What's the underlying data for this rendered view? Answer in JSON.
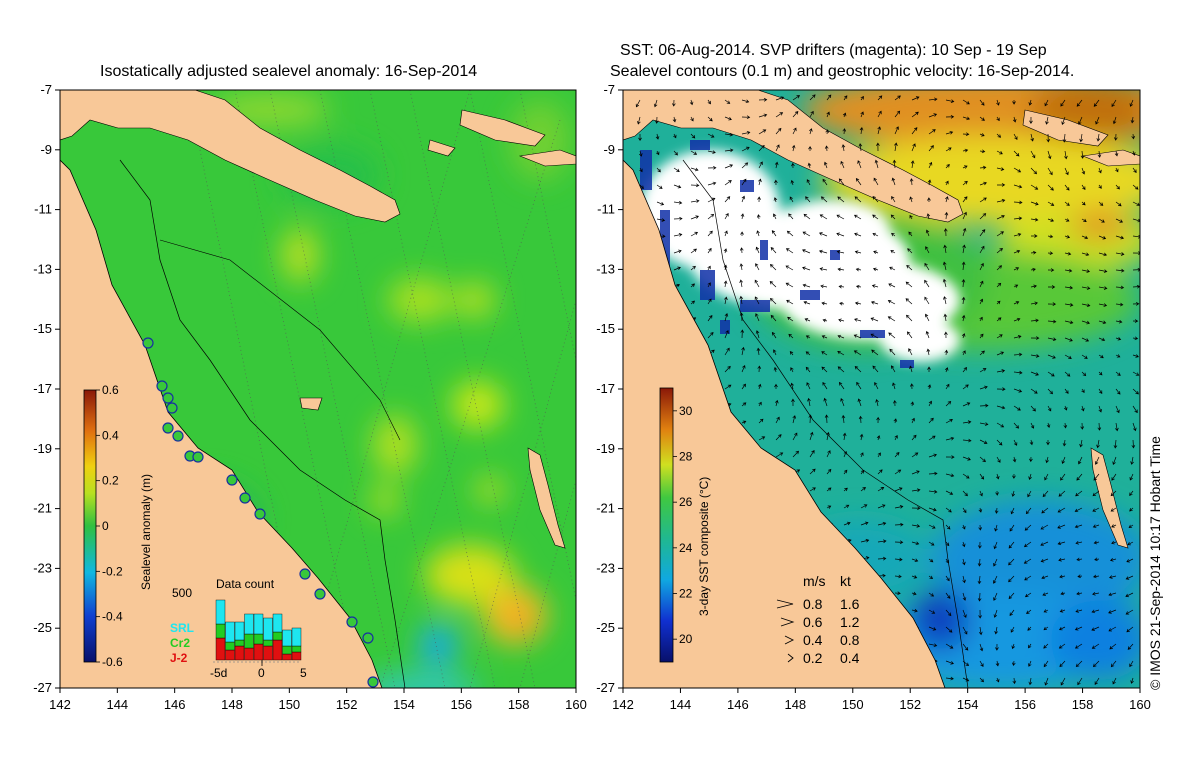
{
  "left_title": "Isostatically adjusted sealevel anomaly: 16-Sep-2014",
  "right_title_line1": "SST: 06-Aug-2014. SVP drifters (magenta): 10 Sep - 19 Sep",
  "right_title_line2": "Sealevel contours (0.1 m) and geostrophic velocity: 16-Sep-2014.",
  "credit": "© IMOS 21-Sep-2014 10:17 Hobart Time",
  "map_extent": {
    "lon": [
      142,
      160
    ],
    "lat": [
      -27,
      -7
    ]
  },
  "x_ticks": [
    "142",
    "144",
    "146",
    "148",
    "150",
    "152",
    "154",
    "156",
    "158",
    "160"
  ],
  "y_ticks": [
    "-7",
    "-9",
    "-11",
    "-13",
    "-15",
    "-17",
    "-19",
    "-21",
    "-23",
    "-25",
    "-27"
  ],
  "sla_colorbar": {
    "label": "Sealevel anomaly (m)",
    "ticks": [
      "0.6",
      "0.4",
      "0.2",
      "0",
      "-0.2",
      "-0.4",
      "-0.6"
    ],
    "range": [
      -0.6,
      0.6
    ]
  },
  "sst_colorbar": {
    "label": "3-day SST composite (°C)",
    "ticks": [
      "30",
      "28",
      "26",
      "24",
      "22",
      "20"
    ],
    "range": [
      19,
      31
    ]
  },
  "data_count": {
    "title": "Data count",
    "max_label": "500",
    "x_labels": [
      "-5d",
      "0",
      "5"
    ],
    "legend": [
      {
        "name": "SRL",
        "color": "#1ee6f0"
      },
      {
        "name": "Cr2",
        "color": "#22cc22"
      },
      {
        "name": "J-2",
        "color": "#e01010"
      }
    ]
  },
  "velocity_legend": {
    "header_ms": "m/s",
    "header_kt": "kt",
    "rows": [
      {
        "ms": "0.8",
        "kt": "1.6"
      },
      {
        "ms": "0.6",
        "kt": "1.2"
      },
      {
        "ms": "0.4",
        "kt": "0.8"
      },
      {
        "ms": "0.2",
        "kt": "0.4"
      }
    ]
  },
  "colors": {
    "land": "#f8c898",
    "sla_base": "#38c83a",
    "sst_base": "#1fb09a"
  }
}
